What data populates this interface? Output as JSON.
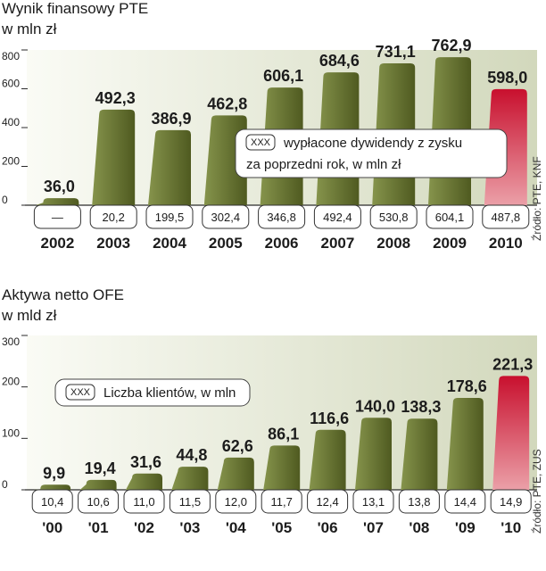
{
  "chart_data": [
    {
      "type": "bar",
      "title": "Wynik finansowy PTE",
      "subtitle": "w mln zł",
      "categories": [
        "2002",
        "2003",
        "2004",
        "2005",
        "2006",
        "2007",
        "2008",
        "2009",
        "2010"
      ],
      "values": [
        36.0,
        492.3,
        386.9,
        462.8,
        606.1,
        684.6,
        731.1,
        762.9,
        598.0
      ],
      "value_labels": [
        "36,0",
        "492,3",
        "386,9",
        "462,8",
        "606,1",
        "684,6",
        "731,1",
        "762,9",
        "598,0"
      ],
      "secondary_name": "wypłacone dywidendy z zysku za poprzedni rok, w mln zł",
      "secondary_labels": [
        "—",
        "20,2",
        "199,5",
        "302,4",
        "346,8",
        "492,4",
        "530,8",
        "604,1",
        "487,8"
      ],
      "legend_key": "XXX",
      "legend_lines": [
        "wypłacone dywidendy z zysku",
        "za poprzedni rok, w mln zł"
      ],
      "ylim": [
        0,
        800
      ],
      "yticks": [
        0,
        200,
        400,
        600,
        800
      ],
      "source": "Źródło: PTE, KNF",
      "highlight_index": 8
    },
    {
      "type": "bar",
      "title": "Aktywa netto OFE",
      "subtitle": "w mld zł",
      "categories": [
        "'00",
        "'01",
        "'02",
        "'03",
        "'04",
        "'05",
        "'06",
        "'07",
        "'08",
        "'09",
        "'10"
      ],
      "values": [
        9.9,
        19.4,
        31.6,
        44.8,
        62.6,
        86.1,
        116.6,
        140.0,
        138.3,
        178.6,
        221.3
      ],
      "value_labels": [
        "9,9",
        "19,4",
        "31,6",
        "44,8",
        "62,6",
        "86,1",
        "116,6",
        "140,0",
        "138,3",
        "178,6",
        "221,3"
      ],
      "secondary_name": "Liczba klientów, w mln",
      "secondary_labels": [
        "10,4",
        "10,6",
        "11,0",
        "11,5",
        "12,0",
        "11,7",
        "12,4",
        "13,1",
        "13,8",
        "14,4",
        "14,9"
      ],
      "legend_key": "XXX",
      "legend_lines": [
        "Liczba klientów, w mln"
      ],
      "ylim": [
        0,
        300
      ],
      "yticks": [
        0,
        100,
        200,
        300
      ],
      "source": "Źródło: PTE, ZUS",
      "highlight_index": 10
    }
  ],
  "colors": {
    "bar_dark": "#5e6a2a",
    "bar_light": "#8c9a55",
    "highlight_dark": "#c8102e",
    "highlight_light": "#e88a92",
    "highlight_text": "#c8102e",
    "panel_top": "#f4f5ec",
    "panel_bottom": "#cfd5b8"
  }
}
